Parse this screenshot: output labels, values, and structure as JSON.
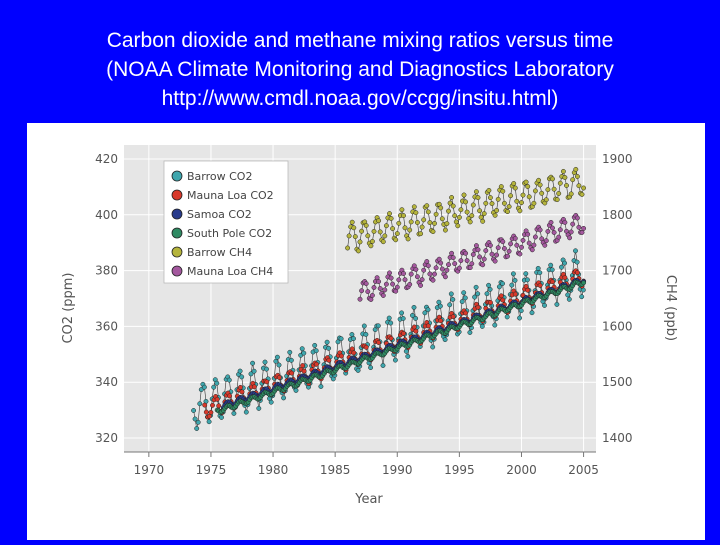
{
  "slide": {
    "title_lines": [
      "Carbon dioxide and methane mixing ratios versus time",
      "(NOAA Climate Monitoring and Diagnostics Laboratory",
      "http://www.cmdl.noaa.gov/ccgg/insitu.html)"
    ],
    "background_color": "#0000ff"
  },
  "chart_data": {
    "type": "line",
    "title": "",
    "xlabel": "Year",
    "ylabel_left": "CO2 (ppm)",
    "ylabel_right": "CH4 (ppb)",
    "xlim": [
      1968,
      2006
    ],
    "ylim_left": [
      315,
      425
    ],
    "ylim_right": [
      1375,
      1925
    ],
    "xticks": [
      "1970",
      "1975",
      "1980",
      "1985",
      "1990",
      "1995",
      "2000",
      "2005"
    ],
    "yticks_left": [
      "320",
      "340",
      "360",
      "380",
      "400",
      "420"
    ],
    "yticks_right": [
      "1400",
      "1500",
      "1600",
      "1700",
      "1800",
      "1900"
    ],
    "grid": true,
    "legend_position": "top-left",
    "series": [
      {
        "name": "Barrow CO2",
        "axis": "left",
        "color": "#3fa6ad",
        "x_range": [
          1973.6,
          2005
        ],
        "start": 331.0,
        "end": 379.5,
        "seasonal_amplitude": 7.5
      },
      {
        "name": "Mauna Loa CO2",
        "axis": "left",
        "color": "#d8392b",
        "x_range": [
          1974.5,
          2005
        ],
        "start": 330.0,
        "end": 378.0,
        "seasonal_amplitude": 3.2
      },
      {
        "name": "Samoa CO2",
        "axis": "left",
        "color": "#283b8c",
        "x_range": [
          1976,
          2005
        ],
        "start": 331.5,
        "end": 376.5,
        "seasonal_amplitude": 1.0
      },
      {
        "name": "South Pole CO2",
        "axis": "left",
        "color": "#2f8a63",
        "x_range": [
          1975.5,
          2005
        ],
        "start": 329.5,
        "end": 376.0,
        "seasonal_amplitude": 0.8
      },
      {
        "name": "Barrow CH4",
        "axis": "right",
        "color": "#b5b43c",
        "x_range": [
          1986,
          2005
        ],
        "start": 1758,
        "end": 1860,
        "seasonal_amplitude": 25
      },
      {
        "name": "Mauna Loa CH4",
        "axis": "right",
        "color": "#a4589e",
        "x_range": [
          1987,
          2005
        ],
        "start": 1660,
        "end": 1785,
        "seasonal_amplitude": 18
      }
    ]
  }
}
